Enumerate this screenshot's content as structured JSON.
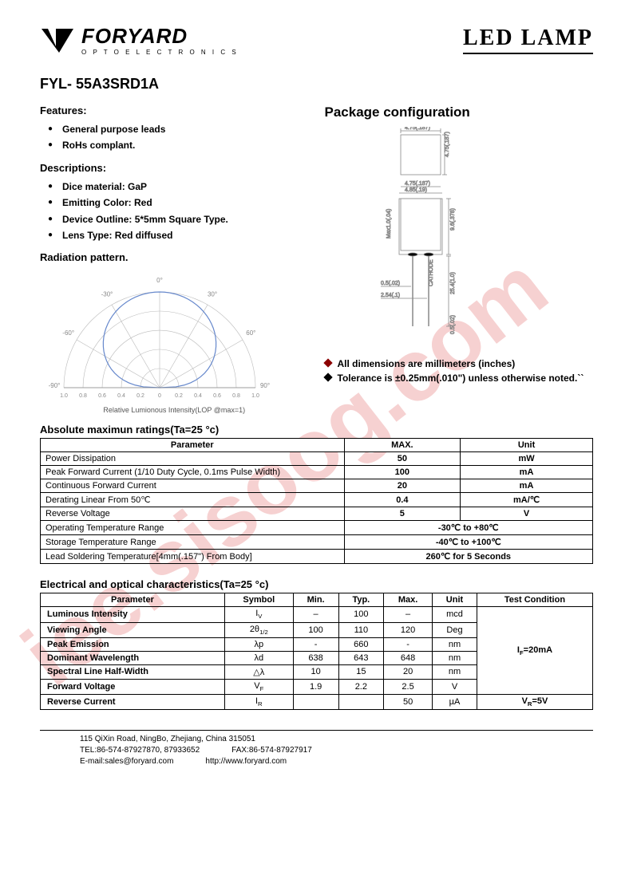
{
  "logo": {
    "main": "FORYARD",
    "sub": "O P T O E L E C T R O N I C S"
  },
  "title": "LED LAMP",
  "partNumber": "FYL- 55A3SRD1A",
  "features": {
    "heading": "Features:",
    "items": [
      "General purpose leads",
      "RoHs complant."
    ]
  },
  "descriptions": {
    "heading": "Descriptions:",
    "items": [
      "Dice material: GaP",
      "Emitting Color: Red",
      "Device Outline: 5*5mm Square Type.",
      "Lens Type: Red diffused"
    ]
  },
  "radiation": {
    "heading": "Radiation pattern.",
    "caption": "Relative Lumionous Intensity(LOP @max=1)",
    "angles": [
      "-90°",
      "-60°",
      "-30°",
      "0°",
      "30°",
      "60°",
      "90°"
    ],
    "ticks": [
      "1.0",
      "0.8",
      "0.6",
      "0.4",
      "0.2",
      "0",
      "0.2",
      "0.4",
      "0.6",
      "0.8",
      "1.0"
    ],
    "line_color": "#6688cc"
  },
  "package": {
    "heading": "Package configuration",
    "dims": {
      "top_w": "4.75(.187)",
      "top_h": "4.75(.187)",
      "mid_w": "4.85(.19)",
      "inner_w": "4.75(.187)",
      "body_h": "9.6(.378)",
      "max_h": "Max1.0(.04)",
      "lead_h": "25.4(1.0)",
      "pin_w": "0.5(.02)",
      "pitch": "2.54(.1)",
      "lead_t": "0.5(.02)",
      "cathode": "CATHODE"
    },
    "notes": [
      "All dimensions are millimeters (inches)",
      "Tolerance is ±0.25mm(.010\") unless otherwise noted.``"
    ]
  },
  "absMax": {
    "title": "Absolute maximun ratings(Ta=25 °c)",
    "headers": [
      "Parameter",
      "MAX.",
      "Unit"
    ],
    "rows": [
      {
        "p": "Power Dissipation",
        "m": "50",
        "u": "mW",
        "span": false
      },
      {
        "p": "Peak Forward Current (1/10 Duty Cycle, 0.1ms Pulse Width)",
        "m": "100",
        "u": "mA",
        "span": false
      },
      {
        "p": "Continuous Forward Current",
        "m": "20",
        "u": "mA",
        "span": false
      },
      {
        "p": "Derating Linear From 50℃",
        "m": "0.4",
        "u": "mA/℃",
        "span": false
      },
      {
        "p": "Reverse Voltage",
        "m": "5",
        "u": "V",
        "span": false
      },
      {
        "p": "Operating Temperature Range",
        "m": "-30℃ to +80℃",
        "u": "",
        "span": true
      },
      {
        "p": "Storage Temperature Range",
        "m": "-40℃ to +100℃",
        "u": "",
        "span": true
      },
      {
        "p": "Lead Soldering Temperature[4mm(.157\") From Body]",
        "m": "260℃ for 5 Seconds",
        "u": "",
        "span": true
      }
    ]
  },
  "elecOpt": {
    "title": "Electrical and optical characteristics(Ta=25 °c)",
    "headers": [
      "Parameter",
      "Symbol",
      "Min.",
      "Typ.",
      "Max.",
      "Unit",
      "Test Condition"
    ],
    "cond1": "I_F=20mA",
    "cond2": "V_R=5V",
    "rows": [
      {
        "p": "Luminous Intensity",
        "s": "I_V",
        "min": "–",
        "typ": "100",
        "max": "–",
        "u": "mcd"
      },
      {
        "p": "Viewing Angle",
        "s": "2θ_1/2",
        "min": "100",
        "typ": "110",
        "max": "120",
        "u": "Deg"
      },
      {
        "p": "Peak Emission",
        "s": "λp",
        "min": "-",
        "typ": "660",
        "max": "-",
        "u": "nm"
      },
      {
        "p": "Dominant Wavelength",
        "s": "λd",
        "min": "638",
        "typ": "643",
        "max": "648",
        "u": "nm"
      },
      {
        "p": "Spectral Line Half-Width",
        "s": "△λ",
        "min": "10",
        "typ": "15",
        "max": "20",
        "u": "nm"
      },
      {
        "p": "Forward Voltage",
        "s": "V_F",
        "min": "1.9",
        "typ": "2.2",
        "max": "2.5",
        "u": "V"
      },
      {
        "p": "Reverse Current",
        "s": "I_R",
        "min": "",
        "typ": "",
        "max": "50",
        "u": "µA"
      }
    ]
  },
  "footer": {
    "addr": "115 QiXin Road, NingBo,   Zhejiang,     China      315051",
    "tel": "TEL:86-574-87927870, 87933652",
    "fax": "FAX:86-574-87927917",
    "email": "E-mail:sales@foryard.com",
    "web": "http://www.foryard.com"
  },
  "watermark": {
    "text": "iee.sisoog.com",
    "color": "rgba(222,80,80,0.25)"
  }
}
